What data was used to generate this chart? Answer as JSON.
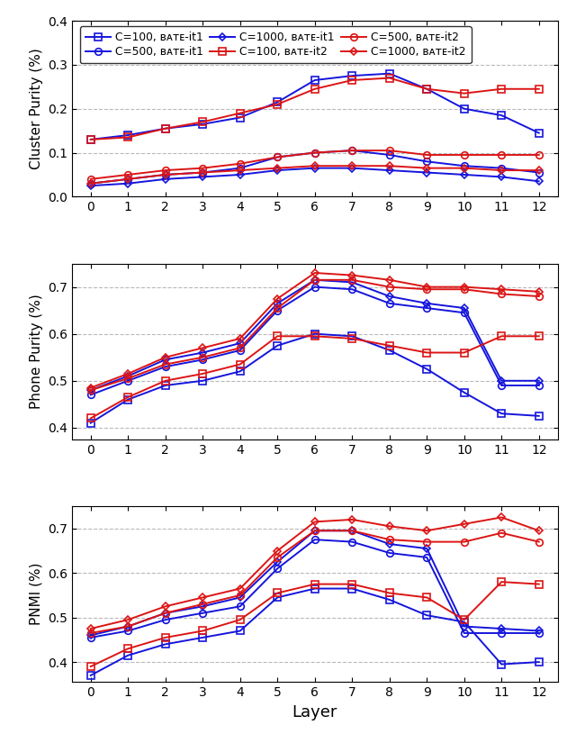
{
  "layers": [
    0,
    1,
    2,
    3,
    4,
    5,
    6,
    7,
    8,
    9,
    10,
    11,
    12
  ],
  "cluster_purity": {
    "c100_it1": [
      0.13,
      0.14,
      0.155,
      0.165,
      0.18,
      0.215,
      0.265,
      0.275,
      0.28,
      0.245,
      0.2,
      0.185,
      0.145
    ],
    "c500_it1": [
      0.03,
      0.04,
      0.05,
      0.055,
      0.065,
      0.09,
      0.1,
      0.105,
      0.095,
      0.08,
      0.07,
      0.065,
      0.055
    ],
    "c1000_it1": [
      0.025,
      0.03,
      0.04,
      0.045,
      0.05,
      0.06,
      0.065,
      0.065,
      0.06,
      0.055,
      0.05,
      0.045,
      0.035
    ],
    "c100_it2": [
      0.13,
      0.135,
      0.155,
      0.17,
      0.19,
      0.21,
      0.245,
      0.265,
      0.27,
      0.245,
      0.235,
      0.245,
      0.245
    ],
    "c500_it2": [
      0.04,
      0.05,
      0.06,
      0.065,
      0.075,
      0.09,
      0.1,
      0.105,
      0.105,
      0.095,
      0.095,
      0.095,
      0.095
    ],
    "c1000_it2": [
      0.03,
      0.04,
      0.05,
      0.055,
      0.06,
      0.065,
      0.07,
      0.07,
      0.07,
      0.065,
      0.065,
      0.06,
      0.06
    ]
  },
  "phone_purity": {
    "c100_it1": [
      0.41,
      0.46,
      0.49,
      0.5,
      0.52,
      0.575,
      0.6,
      0.595,
      0.565,
      0.525,
      0.475,
      0.43,
      0.425
    ],
    "c500_it1": [
      0.47,
      0.5,
      0.53,
      0.545,
      0.565,
      0.65,
      0.7,
      0.695,
      0.665,
      0.655,
      0.645,
      0.49,
      0.49
    ],
    "c1000_it1": [
      0.48,
      0.51,
      0.545,
      0.56,
      0.58,
      0.665,
      0.715,
      0.71,
      0.68,
      0.665,
      0.655,
      0.5,
      0.5
    ],
    "c100_it2": [
      0.42,
      0.465,
      0.5,
      0.515,
      0.535,
      0.595,
      0.595,
      0.59,
      0.575,
      0.56,
      0.56,
      0.595,
      0.595
    ],
    "c500_it2": [
      0.48,
      0.505,
      0.535,
      0.55,
      0.57,
      0.655,
      0.715,
      0.715,
      0.7,
      0.695,
      0.695,
      0.685,
      0.68
    ],
    "c1000_it2": [
      0.485,
      0.515,
      0.55,
      0.57,
      0.59,
      0.675,
      0.73,
      0.725,
      0.715,
      0.7,
      0.7,
      0.695,
      0.69
    ]
  },
  "pnmi": {
    "c100_it1": [
      0.37,
      0.415,
      0.44,
      0.455,
      0.47,
      0.545,
      0.565,
      0.565,
      0.54,
      0.505,
      0.49,
      0.395,
      0.4
    ],
    "c500_it1": [
      0.455,
      0.47,
      0.495,
      0.51,
      0.525,
      0.61,
      0.675,
      0.67,
      0.645,
      0.635,
      0.465,
      0.465,
      0.465
    ],
    "c1000_it1": [
      0.46,
      0.48,
      0.51,
      0.525,
      0.545,
      0.625,
      0.695,
      0.695,
      0.665,
      0.655,
      0.48,
      0.475,
      0.47
    ],
    "c100_it2": [
      0.39,
      0.43,
      0.455,
      0.47,
      0.495,
      0.555,
      0.575,
      0.575,
      0.555,
      0.545,
      0.495,
      0.58,
      0.575
    ],
    "c500_it2": [
      0.465,
      0.48,
      0.51,
      0.53,
      0.55,
      0.635,
      0.695,
      0.695,
      0.675,
      0.67,
      0.67,
      0.69,
      0.67
    ],
    "c1000_it2": [
      0.475,
      0.495,
      0.525,
      0.545,
      0.565,
      0.65,
      0.715,
      0.72,
      0.705,
      0.695,
      0.71,
      0.725,
      0.695
    ]
  },
  "blue": "#1515DC",
  "red": "#DC1515",
  "cluster_purity_ylim": [
    0.0,
    0.4
  ],
  "cluster_purity_yticks": [
    0.0,
    0.1,
    0.2,
    0.3,
    0.4
  ],
  "phone_purity_ylim": [
    0.375,
    0.75
  ],
  "phone_purity_yticks": [
    0.4,
    0.5,
    0.6,
    0.7
  ],
  "pnmi_ylim": [
    0.355,
    0.75
  ],
  "pnmi_yticks": [
    0.4,
    0.5,
    0.6,
    0.7
  ],
  "ylabel1": "Cluster Purity (%)",
  "ylabel2": "Phone Purity (%)",
  "ylabel3": "PNMI (%)",
  "xlabel": "Layer",
  "legend_labels_row1": [
    "C=100, Base-it1",
    "C=500, Base-it1",
    "C=1000, Base-it1"
  ],
  "legend_labels_row2": [
    "C=100, Base-it2",
    "C=500, Base-it2",
    "C=1000, Base-it2"
  ]
}
